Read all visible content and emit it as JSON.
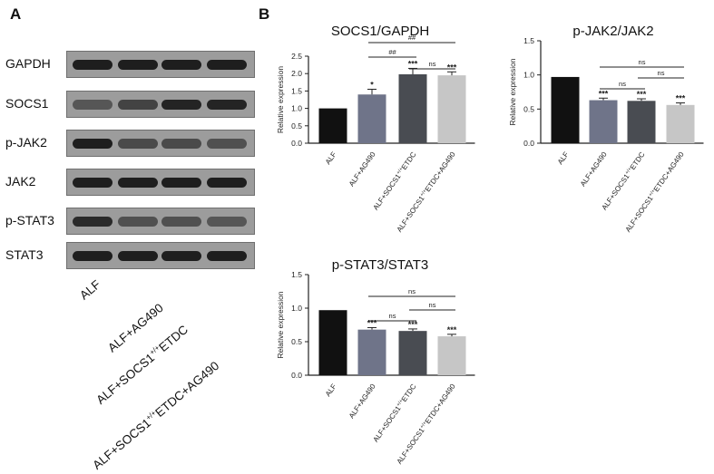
{
  "panel_a": {
    "letter": "A",
    "proteins": [
      "GAPDH",
      "SOCS1",
      "p-JAK2",
      "JAK2",
      "p-STAT3",
      "STAT3"
    ],
    "lanes": [
      {
        "main": "ALF",
        "sup": "",
        "tail": ""
      },
      {
        "main": "ALF+AG490",
        "sup": "",
        "tail": ""
      },
      {
        "main": "ALF+SOCS1",
        "sup": "+/+",
        "tail": "ETDC"
      },
      {
        "main": "ALF+SOCS1",
        "sup": "+/+",
        "tail": "ETDC+AG490"
      }
    ],
    "band_intensity": [
      [
        1.0,
        1.0,
        1.0,
        1.0
      ],
      [
        0.55,
        0.7,
        0.95,
        0.95
      ],
      [
        1.0,
        0.65,
        0.65,
        0.6
      ],
      [
        1.0,
        1.0,
        1.0,
        1.0
      ],
      [
        0.9,
        0.6,
        0.6,
        0.55
      ],
      [
        1.0,
        1.0,
        1.0,
        1.0
      ]
    ]
  },
  "panel_b": {
    "letter": "B"
  },
  "chart_data": [
    {
      "type": "bar",
      "title": "SOCS1/GAPDH",
      "ylabel": "Relative expression",
      "ylim": [
        0,
        2.5
      ],
      "yticks": [
        "0.0",
        "0.5",
        "1.0",
        "1.5",
        "2.0",
        "2.5"
      ],
      "categories": [
        "ALF",
        "ALF+AG490",
        "ALF+SOCS1+/+ETDC",
        "ALF+SOCS1+/+ETDC+AG490"
      ],
      "values": [
        1.0,
        1.4,
        1.98,
        1.95
      ],
      "errors": [
        0,
        0.15,
        0.17,
        0.1
      ],
      "colors": [
        "#111111",
        "#6f7489",
        "#494c52",
        "#c6c6c6"
      ],
      "stars": [
        "",
        "*",
        "***",
        "***"
      ],
      "brackets": [
        {
          "from": 2,
          "to": 3,
          "label": "ns"
        },
        {
          "from": 1,
          "to": 2,
          "label": "##"
        },
        {
          "from": 1,
          "to": 3,
          "label": "##"
        }
      ]
    },
    {
      "type": "bar",
      "title": "p-JAK2/JAK2",
      "ylabel": "Relative expression",
      "ylim": [
        0,
        1.5
      ],
      "yticks": [
        "0.0",
        "0.5",
        "1.0",
        "1.5"
      ],
      "categories": [
        "ALF",
        "ALF+AG490",
        "ALF+SOCS1+/+ETDC",
        "ALF+SOCS1+/+ETDC+AG490"
      ],
      "values": [
        0.97,
        0.63,
        0.62,
        0.56
      ],
      "errors": [
        0,
        0.03,
        0.03,
        0.03
      ],
      "colors": [
        "#111111",
        "#6f7489",
        "#494c52",
        "#c6c6c6"
      ],
      "stars": [
        "",
        "***",
        "***",
        "***"
      ],
      "brackets": [
        {
          "from": 1,
          "to": 2,
          "label": "ns"
        },
        {
          "from": 2,
          "to": 3,
          "label": "ns"
        },
        {
          "from": 1,
          "to": 3,
          "label": "ns"
        }
      ]
    },
    {
      "type": "bar",
      "title": "p-STAT3/STAT3",
      "ylabel": "Relative expression",
      "ylim": [
        0,
        1.5
      ],
      "yticks": [
        "0.0",
        "0.5",
        "1.0",
        "1.5"
      ],
      "categories": [
        "ALF",
        "ALF+AG490",
        "ALF+SOCS1+/+ETDC",
        "ALF+SOCS1+/+ETDC+AG490"
      ],
      "values": [
        0.97,
        0.68,
        0.66,
        0.58
      ],
      "errors": [
        0,
        0.03,
        0.03,
        0.03
      ],
      "colors": [
        "#111111",
        "#6f7489",
        "#494c52",
        "#c6c6c6"
      ],
      "stars": [
        "",
        "***",
        "***",
        "***"
      ],
      "brackets": [
        {
          "from": 1,
          "to": 2,
          "label": "ns"
        },
        {
          "from": 2,
          "to": 3,
          "label": "ns"
        },
        {
          "from": 1,
          "to": 3,
          "label": "ns"
        }
      ]
    }
  ]
}
